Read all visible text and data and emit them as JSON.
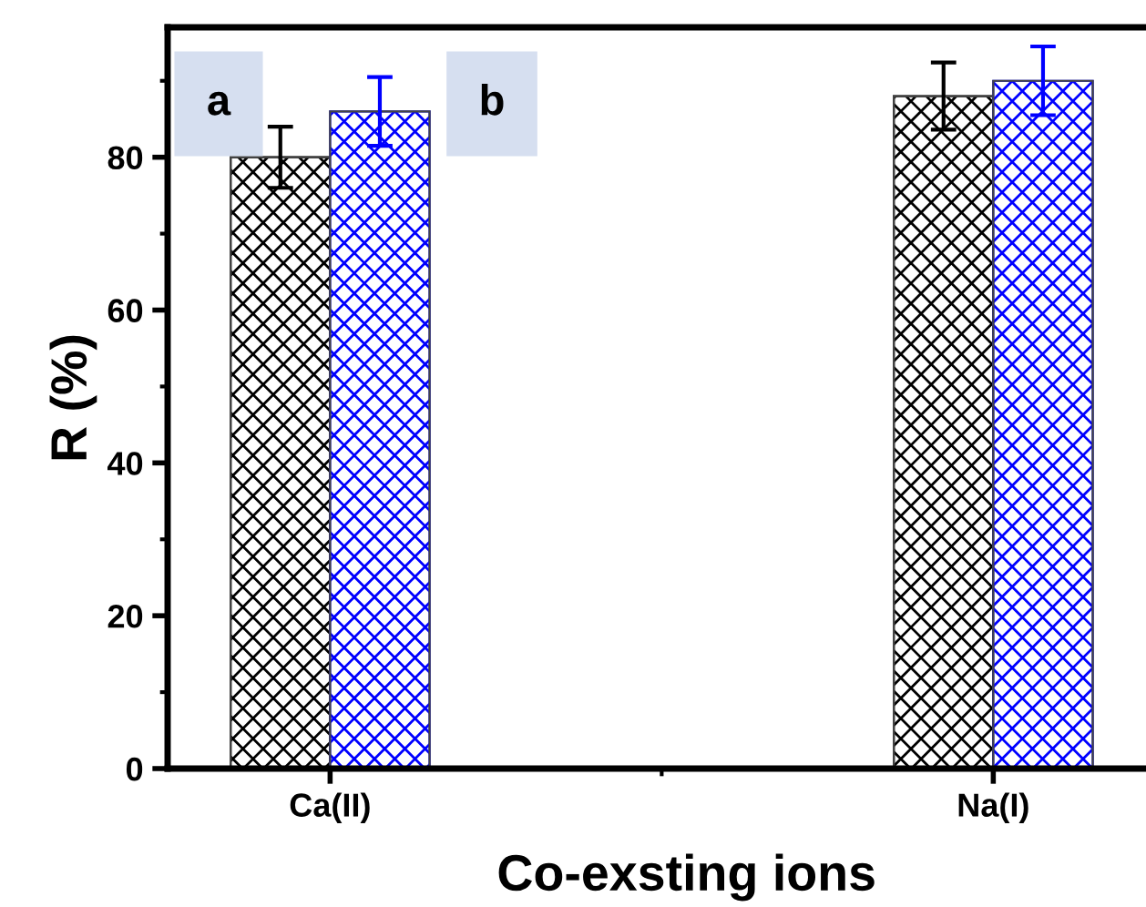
{
  "chart_data": {
    "type": "bar",
    "xlabel": "Co-exsting ions",
    "ylabel": "R (%)",
    "categories": [
      "Ca(II)",
      "Na(I)"
    ],
    "series": [
      {
        "color": "#000000",
        "values": [
          80,
          88
        ],
        "errors": [
          4,
          4.4
        ]
      },
      {
        "color": "#0000ff",
        "values": [
          86,
          90
        ],
        "errors": [
          4.5,
          4.5
        ]
      }
    ],
    "ylim": [
      0,
      97
    ],
    "yticks": [
      0,
      20,
      40,
      60,
      80
    ],
    "grid": false,
    "legend": false,
    "annotations": [
      "a",
      "b"
    ]
  }
}
